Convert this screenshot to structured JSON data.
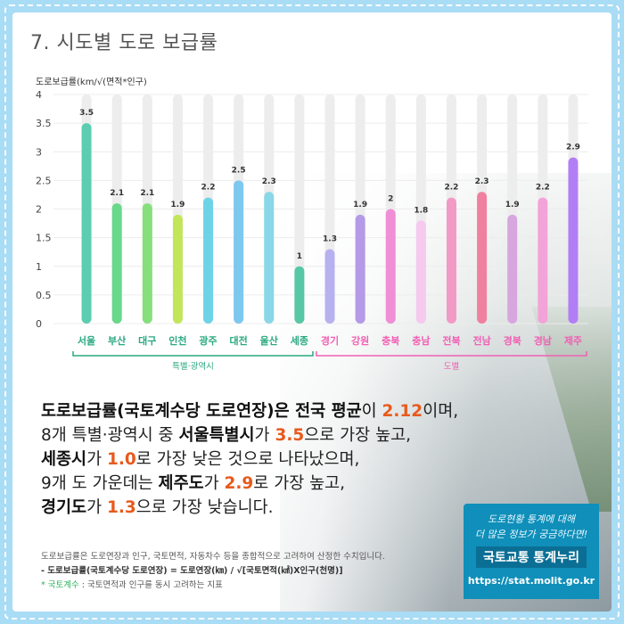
{
  "title": "7. 시도별 도로 보급률",
  "unit_label": "도로보급률(km/√(면적*인구)",
  "chart_data": {
    "type": "bar",
    "ylim": [
      0,
      4
    ],
    "yticks": [
      "4",
      "3.5",
      "3",
      "2.5",
      "2",
      "1.5",
      "1",
      "0.5",
      "0"
    ],
    "categories": [
      "서울",
      "부산",
      "대구",
      "인천",
      "광주",
      "대전",
      "울산",
      "세종",
      "경기",
      "강원",
      "충북",
      "충남",
      "전북",
      "전남",
      "경북",
      "경남",
      "제주"
    ],
    "values": [
      3.5,
      2.1,
      2.1,
      1.9,
      2.2,
      2.5,
      2.3,
      1,
      1.3,
      1.9,
      2,
      1.8,
      2.2,
      2.3,
      1.9,
      2.2,
      2.9
    ],
    "value_labels": [
      "3.5",
      "2.1",
      "2.1",
      "1.9",
      "2.2",
      "2.5",
      "2.3",
      "1",
      "1.3",
      "1.9",
      "2",
      "1.8",
      "2.2",
      "2.3",
      "1.9",
      "2.2",
      "2.9"
    ],
    "colors": [
      "#5ccdb0",
      "#68d88a",
      "#86df7c",
      "#c2e65a",
      "#6fd3e8",
      "#7cc8ee",
      "#8ad7e8",
      "#57c7a5",
      "#b8b1ef",
      "#b49ae7",
      "#f08ed6",
      "#f6c9ee",
      "#f29ac6",
      "#f0809f",
      "#d7a6df",
      "#f2a3d8",
      "#b27ef5"
    ],
    "label_colors": [
      "#2aa981",
      "#2aa981",
      "#2aa981",
      "#2aa981",
      "#2aa981",
      "#2aa981",
      "#2aa981",
      "#2aa981",
      "#f060b4",
      "#f060b4",
      "#f060b4",
      "#f060b4",
      "#f060b4",
      "#f060b4",
      "#f060b4",
      "#f060b4",
      "#f060b4"
    ],
    "groups": [
      {
        "name": "특별·광역시",
        "from": 0,
        "to": 7,
        "color": "#2aa981"
      },
      {
        "name": "도별",
        "from": 8,
        "to": 16,
        "color": "#f060b4"
      }
    ]
  },
  "summary": {
    "l1a": "도로보급률(국토계수당 도로연장)은 ",
    "l1b": "전국 평균",
    "l1c": "이 ",
    "l1d": "2.12",
    "l1e": "이며,",
    "l2a": "8개 특별·광역시 중 ",
    "l2b": "서울특별시",
    "l2c": "가 ",
    "l2d": "3.5",
    "l2e": "으로 가장 높고,",
    "l3a": "세종시",
    "l3b": "가 ",
    "l3c": "1.0",
    "l3d": "로 가장 낮은 것으로 나타났으며,",
    "l4a": "9개 도 가운데는 ",
    "l4b": "제주도",
    "l4c": "가 ",
    "l4d": "2.9",
    "l4e": "로 가장 높고,",
    "l5a": "경기도",
    "l5b": "가 ",
    "l5c": "1.3",
    "l5d": "으로 가장 낮습니다."
  },
  "footnote": {
    "line1": "도로보급률은 도로연장과 인구, 국토면적, 자동차수 등을 종합적으로 고려하여 산정한 수치입니다.",
    "line2": "- 도로보급률(국토계수당 도로연장) = 도로연장(㎞) / √[국토면적(㎢)X인구(천명)]",
    "line3_star": "* 국토계수",
    "line3_rest": " : 국토면적과 인구를 동시 고려하는 지표"
  },
  "promo": {
    "hand1": "도로현황 통계에 대해",
    "hand2": "더 많은 정보가 궁금하다면!",
    "brand": "국토교통 통계누리",
    "url": "https://stat.molit.go.kr"
  }
}
